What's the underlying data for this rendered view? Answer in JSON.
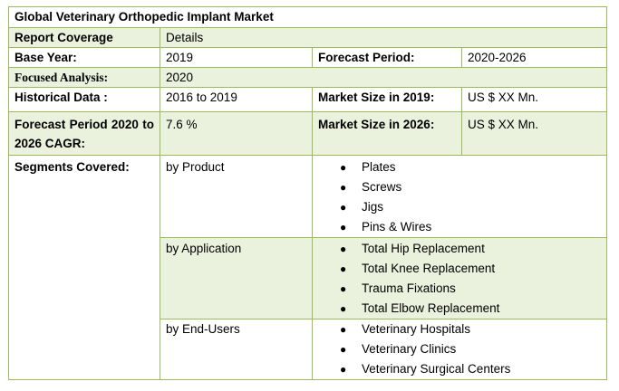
{
  "title": "Global Veterinary Orthopedic Implant Market",
  "header": {
    "label": "Report Coverage",
    "value": "Details"
  },
  "base_year": {
    "label": "Base Year:",
    "value": "2019"
  },
  "forecast_period": {
    "label": "Forecast Period:",
    "value": "2020-2026"
  },
  "focused_analysis": {
    "label": "Focused Analysis:",
    "value": "2020"
  },
  "historical_data": {
    "label": "Historical Data :",
    "value": "2016 to 2019"
  },
  "market_size_2019": {
    "label": "Market Size in 2019:",
    "value": "US $ XX Mn."
  },
  "cagr": {
    "label": "Forecast Period 2020 to 2026 CAGR:",
    "value": "7.6 %"
  },
  "market_size_2026": {
    "label": "Market Size in 2026:",
    "value": "US $ XX Mn."
  },
  "segments": {
    "label": "Segments Covered:",
    "groups": [
      {
        "name": "by Product",
        "items": [
          "Plates",
          "Screws",
          "Jigs",
          "Pins & Wires"
        ]
      },
      {
        "name": "by Application",
        "items": [
          "Total Hip Replacement",
          "Total Knee Replacement",
          "Trauma Fixations",
          "Total Elbow Replacement"
        ]
      },
      {
        "name": "by End-Users",
        "items": [
          "Veterinary Hospitals",
          "Veterinary Clinics",
          "Veterinary Surgical Centers"
        ]
      }
    ]
  }
}
